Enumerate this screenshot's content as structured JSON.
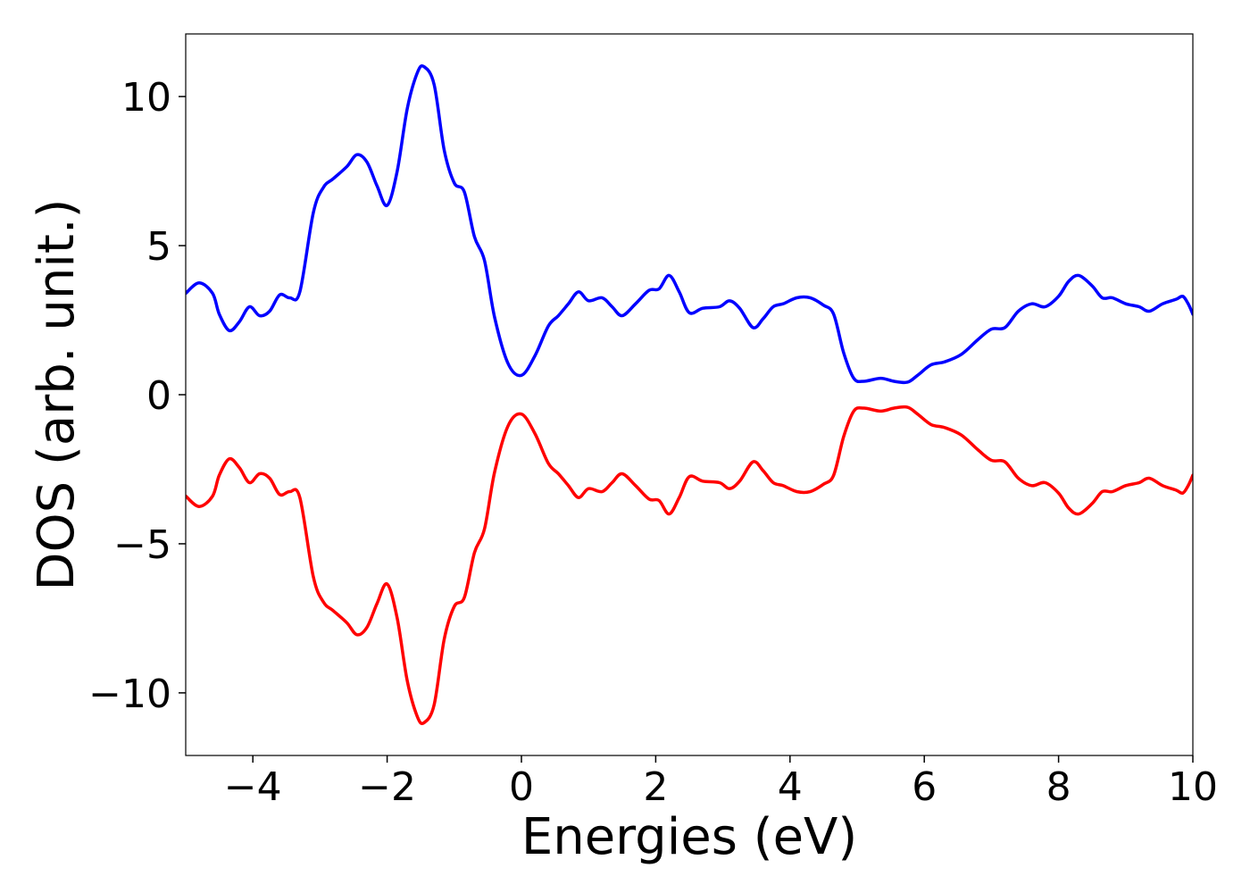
{
  "chart_data": {
    "type": "line",
    "title": "",
    "xlabel": "Energies (eV)",
    "ylabel": "DOS (arb. unit.)",
    "xlim": [
      -5,
      10
    ],
    "ylim": [
      -12.1,
      12.1
    ],
    "x_ticks": [
      -4,
      -2,
      0,
      2,
      4,
      6,
      8,
      10
    ],
    "y_ticks": [
      -10,
      -5,
      0,
      5,
      10
    ],
    "x_tick_labels": [
      "−4",
      "−2",
      "0",
      "2",
      "4",
      "6",
      "8",
      "10"
    ],
    "y_tick_labels": [
      "−10",
      "−5",
      "0",
      "5",
      "10"
    ],
    "grid": false,
    "legend": "none",
    "line_width": 3.5,
    "series": [
      {
        "color": "#0000ff",
        "points": [
          [
            -5.0,
            3.4
          ],
          [
            -4.8,
            3.75
          ],
          [
            -4.6,
            3.4
          ],
          [
            -4.5,
            2.7
          ],
          [
            -4.35,
            2.15
          ],
          [
            -4.2,
            2.45
          ],
          [
            -4.05,
            2.95
          ],
          [
            -3.9,
            2.65
          ],
          [
            -3.75,
            2.8
          ],
          [
            -3.6,
            3.35
          ],
          [
            -3.45,
            3.25
          ],
          [
            -3.3,
            3.45
          ],
          [
            -3.1,
            6.1
          ],
          [
            -2.95,
            6.95
          ],
          [
            -2.8,
            7.25
          ],
          [
            -2.6,
            7.65
          ],
          [
            -2.45,
            8.05
          ],
          [
            -2.3,
            7.8
          ],
          [
            -2.15,
            7.0
          ],
          [
            -2.0,
            6.35
          ],
          [
            -1.85,
            7.5
          ],
          [
            -1.7,
            9.6
          ],
          [
            -1.55,
            10.8
          ],
          [
            -1.45,
            11.0
          ],
          [
            -1.3,
            10.4
          ],
          [
            -1.15,
            8.2
          ],
          [
            -1.0,
            7.1
          ],
          [
            -0.85,
            6.8
          ],
          [
            -0.7,
            5.3
          ],
          [
            -0.55,
            4.5
          ],
          [
            -0.4,
            2.6
          ],
          [
            -0.2,
            1.05
          ],
          [
            0.0,
            0.65
          ],
          [
            0.2,
            1.3
          ],
          [
            0.4,
            2.3
          ],
          [
            0.55,
            2.65
          ],
          [
            0.7,
            3.05
          ],
          [
            0.85,
            3.45
          ],
          [
            1.0,
            3.15
          ],
          [
            1.2,
            3.25
          ],
          [
            1.35,
            2.95
          ],
          [
            1.5,
            2.65
          ],
          [
            1.7,
            3.05
          ],
          [
            1.9,
            3.5
          ],
          [
            2.05,
            3.55
          ],
          [
            2.2,
            4.0
          ],
          [
            2.35,
            3.45
          ],
          [
            2.5,
            2.75
          ],
          [
            2.7,
            2.9
          ],
          [
            2.95,
            2.95
          ],
          [
            3.1,
            3.15
          ],
          [
            3.25,
            2.9
          ],
          [
            3.45,
            2.25
          ],
          [
            3.6,
            2.55
          ],
          [
            3.75,
            2.95
          ],
          [
            3.9,
            3.05
          ],
          [
            4.1,
            3.25
          ],
          [
            4.3,
            3.25
          ],
          [
            4.5,
            3.0
          ],
          [
            4.65,
            2.7
          ],
          [
            4.8,
            1.4
          ],
          [
            4.95,
            0.55
          ],
          [
            5.1,
            0.45
          ],
          [
            5.35,
            0.55
          ],
          [
            5.55,
            0.45
          ],
          [
            5.75,
            0.42
          ],
          [
            5.9,
            0.65
          ],
          [
            6.1,
            1.0
          ],
          [
            6.3,
            1.1
          ],
          [
            6.55,
            1.35
          ],
          [
            6.8,
            1.85
          ],
          [
            7.0,
            2.2
          ],
          [
            7.2,
            2.25
          ],
          [
            7.4,
            2.8
          ],
          [
            7.6,
            3.05
          ],
          [
            7.8,
            2.95
          ],
          [
            8.0,
            3.3
          ],
          [
            8.15,
            3.8
          ],
          [
            8.3,
            4.0
          ],
          [
            8.5,
            3.65
          ],
          [
            8.65,
            3.25
          ],
          [
            8.8,
            3.25
          ],
          [
            9.0,
            3.05
          ],
          [
            9.2,
            2.95
          ],
          [
            9.35,
            2.8
          ],
          [
            9.55,
            3.05
          ],
          [
            9.75,
            3.2
          ],
          [
            9.85,
            3.3
          ],
          [
            9.93,
            3.05
          ],
          [
            10.0,
            2.7
          ]
        ]
      },
      {
        "color": "#ff0000",
        "points": [
          [
            -5.0,
            -3.4
          ],
          [
            -4.8,
            -3.75
          ],
          [
            -4.6,
            -3.4
          ],
          [
            -4.5,
            -2.7
          ],
          [
            -4.35,
            -2.15
          ],
          [
            -4.2,
            -2.45
          ],
          [
            -4.05,
            -2.95
          ],
          [
            -3.9,
            -2.65
          ],
          [
            -3.75,
            -2.8
          ],
          [
            -3.6,
            -3.35
          ],
          [
            -3.45,
            -3.25
          ],
          [
            -3.3,
            -3.45
          ],
          [
            -3.1,
            -6.1
          ],
          [
            -2.95,
            -6.95
          ],
          [
            -2.8,
            -7.25
          ],
          [
            -2.6,
            -7.65
          ],
          [
            -2.45,
            -8.05
          ],
          [
            -2.3,
            -7.8
          ],
          [
            -2.15,
            -7.0
          ],
          [
            -2.0,
            -6.35
          ],
          [
            -1.85,
            -7.5
          ],
          [
            -1.7,
            -9.6
          ],
          [
            -1.55,
            -10.8
          ],
          [
            -1.45,
            -11.0
          ],
          [
            -1.3,
            -10.4
          ],
          [
            -1.15,
            -8.2
          ],
          [
            -1.0,
            -7.1
          ],
          [
            -0.85,
            -6.8
          ],
          [
            -0.7,
            -5.3
          ],
          [
            -0.55,
            -4.5
          ],
          [
            -0.4,
            -2.6
          ],
          [
            -0.2,
            -1.05
          ],
          [
            0.0,
            -0.65
          ],
          [
            0.2,
            -1.3
          ],
          [
            0.4,
            -2.3
          ],
          [
            0.55,
            -2.65
          ],
          [
            0.7,
            -3.05
          ],
          [
            0.85,
            -3.45
          ],
          [
            1.0,
            -3.15
          ],
          [
            1.2,
            -3.25
          ],
          [
            1.35,
            -2.95
          ],
          [
            1.5,
            -2.65
          ],
          [
            1.7,
            -3.05
          ],
          [
            1.9,
            -3.5
          ],
          [
            2.05,
            -3.55
          ],
          [
            2.2,
            -4.0
          ],
          [
            2.35,
            -3.45
          ],
          [
            2.5,
            -2.75
          ],
          [
            2.7,
            -2.9
          ],
          [
            2.95,
            -2.95
          ],
          [
            3.1,
            -3.15
          ],
          [
            3.25,
            -2.9
          ],
          [
            3.45,
            -2.25
          ],
          [
            3.6,
            -2.55
          ],
          [
            3.75,
            -2.95
          ],
          [
            3.9,
            -3.05
          ],
          [
            4.1,
            -3.25
          ],
          [
            4.3,
            -3.25
          ],
          [
            4.5,
            -3.0
          ],
          [
            4.65,
            -2.7
          ],
          [
            4.8,
            -1.4
          ],
          [
            4.95,
            -0.55
          ],
          [
            5.1,
            -0.45
          ],
          [
            5.35,
            -0.55
          ],
          [
            5.55,
            -0.45
          ],
          [
            5.75,
            -0.42
          ],
          [
            5.9,
            -0.65
          ],
          [
            6.1,
            -1.0
          ],
          [
            6.3,
            -1.1
          ],
          [
            6.55,
            -1.35
          ],
          [
            6.8,
            -1.85
          ],
          [
            7.0,
            -2.2
          ],
          [
            7.2,
            -2.25
          ],
          [
            7.4,
            -2.8
          ],
          [
            7.6,
            -3.05
          ],
          [
            7.8,
            -2.95
          ],
          [
            8.0,
            -3.3
          ],
          [
            8.15,
            -3.8
          ],
          [
            8.3,
            -4.0
          ],
          [
            8.5,
            -3.65
          ],
          [
            8.65,
            -3.25
          ],
          [
            8.8,
            -3.25
          ],
          [
            9.0,
            -3.05
          ],
          [
            9.2,
            -2.95
          ],
          [
            9.35,
            -2.8
          ],
          [
            9.55,
            -3.05
          ],
          [
            9.75,
            -3.2
          ],
          [
            9.85,
            -3.3
          ],
          [
            9.93,
            -3.05
          ],
          [
            10.0,
            -2.7
          ]
        ]
      }
    ]
  }
}
